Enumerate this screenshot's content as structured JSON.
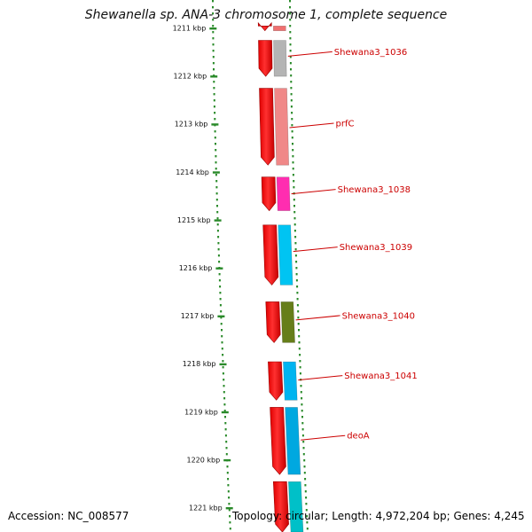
{
  "title": "Shewanella sp. ANA-3 chromosome 1, complete sequence",
  "accession_text": "Accession: NC_008577",
  "topology_text": "Topology: circular; Length: 4,972,204 bp; Genes: 4,245",
  "ruler": {
    "labels": [
      "1211 kbp",
      "1212 kbp",
      "1213 kbp",
      "1214 kbp",
      "1215 kbp",
      "1216 kbp",
      "1217 kbp",
      "1218 kbp",
      "1219 kbp",
      "1220 kbp",
      "1221 kbp"
    ]
  },
  "colors": {
    "cds_strand": "#ff0000",
    "label": "#cc0000",
    "ruler": "#2a8a2a",
    "backbone": "#808080"
  },
  "cds_features": [
    {
      "start_kbp": 1210.95,
      "end_kbp": 1211.05
    },
    {
      "start_kbp": 1211.25,
      "end_kbp": 1212.0
    },
    {
      "start_kbp": 1212.25,
      "end_kbp": 1213.85
    },
    {
      "start_kbp": 1214.1,
      "end_kbp": 1214.8
    },
    {
      "start_kbp": 1215.1,
      "end_kbp": 1216.35
    },
    {
      "start_kbp": 1216.7,
      "end_kbp": 1217.55
    },
    {
      "start_kbp": 1217.95,
      "end_kbp": 1218.75
    },
    {
      "start_kbp": 1218.9,
      "end_kbp": 1220.3
    },
    {
      "start_kbp": 1220.45,
      "end_kbp": 1221.5
    }
  ],
  "genes": [
    {
      "name": "",
      "start_kbp": 1210.95,
      "end_kbp": 1211.05,
      "color": "#f07070"
    },
    {
      "name": "Shewana3_1036",
      "start_kbp": 1211.25,
      "end_kbp": 1212.0,
      "color": "#b4b4b4",
      "label_kbp": 1211.58
    },
    {
      "name": "prfC",
      "start_kbp": 1212.25,
      "end_kbp": 1213.85,
      "color": "#f08888",
      "label_kbp": 1213.07
    },
    {
      "name": "Shewana3_1038",
      "start_kbp": 1214.1,
      "end_kbp": 1214.8,
      "color": "#ff2db0",
      "label_kbp": 1214.45
    },
    {
      "name": "Shewana3_1039",
      "start_kbp": 1215.1,
      "end_kbp": 1216.35,
      "color": "#00c4f2",
      "label_kbp": 1215.65
    },
    {
      "name": "Shewana3_1040",
      "start_kbp": 1216.7,
      "end_kbp": 1217.55,
      "color": "#667e1a",
      "label_kbp": 1217.08
    },
    {
      "name": "Shewana3_1041",
      "start_kbp": 1217.95,
      "end_kbp": 1218.75,
      "color": "#00b4f0",
      "label_kbp": 1218.33
    },
    {
      "name": "deoA",
      "start_kbp": 1218.9,
      "end_kbp": 1220.3,
      "color": "#00a8e0",
      "label_kbp": 1219.58
    },
    {
      "name": "",
      "start_kbp": 1220.45,
      "end_kbp": 1221.5,
      "color": "#00c0c8"
    }
  ]
}
